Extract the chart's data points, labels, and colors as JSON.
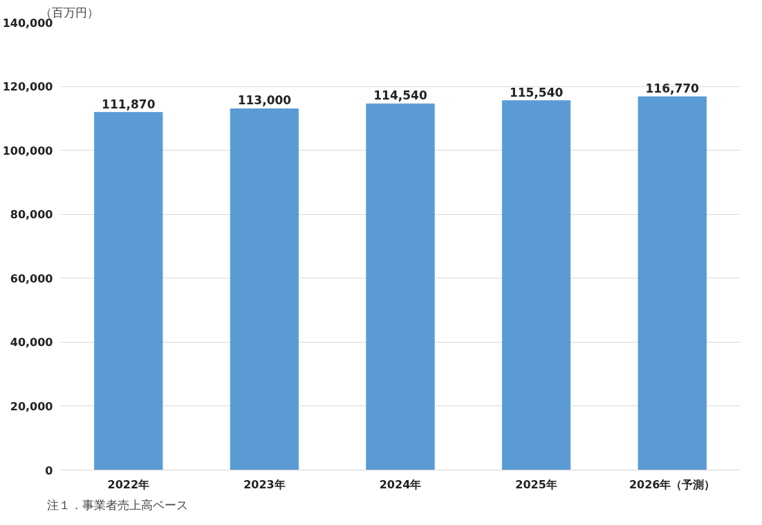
{
  "chart_data": {
    "type": "bar",
    "ylabel": "（百万円）",
    "categories": [
      "2022年",
      "2023年",
      "2024年",
      "2025年",
      "2026年（予測）"
    ],
    "values": [
      111870,
      113000,
      114540,
      115540,
      116770
    ],
    "value_labels": [
      "111,870",
      "113,000",
      "114,540",
      "115,540",
      "116,770"
    ],
    "color": "#5b9bd5",
    "ylim": [
      0,
      140000
    ],
    "yticks": [
      0,
      {
        "value": 20000,
        "label": "20,000"
      },
      {
        "value": 40000,
        "label": "40,000"
      },
      {
        "value": 60000,
        "label": "60,000"
      },
      {
        "value": 80000,
        "label": "80,000"
      },
      {
        "value": 100000,
        "label": "100,000"
      },
      {
        "value": 120000,
        "label": "120,000"
      },
      {
        "value": 140000,
        "label": "140,000"
      }
    ],
    "grid": "y",
    "annotations": [
      "注１．事業者売上高ベース"
    ]
  }
}
